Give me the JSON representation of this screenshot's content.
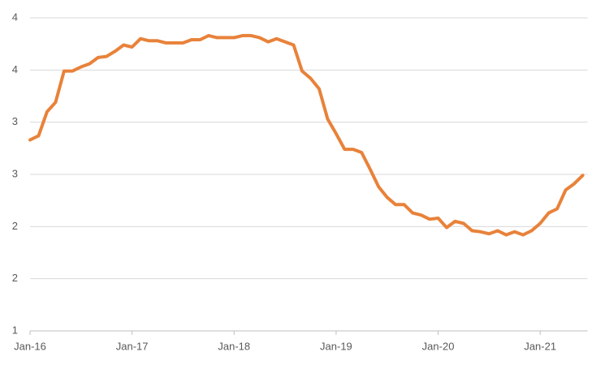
{
  "chart_data": {
    "type": "line",
    "categories": [
      "Jan-16",
      null,
      null,
      null,
      null,
      null,
      null,
      null,
      null,
      null,
      null,
      null,
      "Jan-17",
      null,
      null,
      null,
      null,
      null,
      null,
      null,
      null,
      null,
      null,
      null,
      "Jan-18",
      null,
      null,
      null,
      null,
      null,
      null,
      null,
      null,
      null,
      null,
      null,
      "Jan-19",
      null,
      null,
      null,
      null,
      null,
      null,
      null,
      null,
      null,
      null,
      null,
      "Jan-20",
      null,
      null,
      null,
      null,
      null,
      null,
      null,
      null,
      null,
      null,
      null,
      "Jan-21",
      null,
      null,
      null,
      null,
      null
    ],
    "series": [
      {
        "color": "#e8823a",
        "values": [
          2.83,
          2.87,
          3.1,
          3.19,
          3.49,
          3.49,
          3.53,
          3.56,
          3.62,
          3.63,
          3.68,
          3.74,
          3.72,
          3.8,
          3.78,
          3.78,
          3.76,
          3.76,
          3.76,
          3.79,
          3.79,
          3.83,
          3.81,
          3.81,
          3.81,
          3.83,
          3.83,
          3.81,
          3.77,
          3.8,
          3.77,
          3.74,
          3.49,
          3.42,
          3.32,
          3.03,
          2.89,
          2.74,
          2.74,
          2.71,
          2.55,
          2.38,
          2.28,
          2.21,
          2.21,
          2.13,
          2.11,
          2.07,
          2.08,
          1.99,
          2.05,
          2.03,
          1.96,
          1.95,
          1.93,
          1.96,
          1.92,
          1.95,
          1.92,
          1.96,
          2.03,
          2.13,
          2.17,
          2.35,
          2.41,
          2.49
        ]
      }
    ],
    "ylim": [
      1,
      4
    ],
    "yticks": [
      1,
      {
        "value": 1.5,
        "label": "2"
      },
      2,
      {
        "value": 2.5,
        "label": "3"
      },
      3,
      {
        "value": 3.5,
        "label": "4"
      },
      4
    ],
    "grid": true
  }
}
